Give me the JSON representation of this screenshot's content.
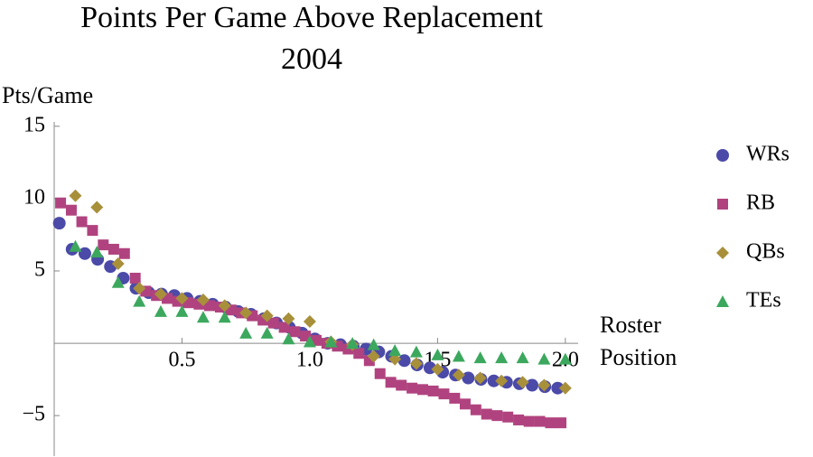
{
  "chart_data": {
    "type": "scatter",
    "title": "Points Per Game Above Replacement",
    "subtitle": "2004",
    "ylabel": "Pts/Game",
    "xlabel": "Roster Position",
    "xlim": [
      0,
      2.05
    ],
    "ylim": [
      -7.8,
      15.3
    ],
    "xticks": [
      0.5,
      {
        "value": 1.0,
        "label": "1.0"
      },
      1.5,
      {
        "value": 2.0,
        "label": "2.0"
      }
    ],
    "yticks": [
      {
        "value": -5,
        "label": "−5"
      },
      5,
      10,
      15
    ],
    "legend": "right",
    "series": [
      {
        "name": "WRs",
        "color": "#4b4aa8",
        "marker": "circle",
        "x": [
          0.02,
          0.07,
          0.12,
          0.17,
          0.22,
          0.27,
          0.32,
          0.37,
          0.42,
          0.47,
          0.52,
          0.57,
          0.62,
          0.67,
          0.72,
          0.77,
          0.82,
          0.87,
          0.92,
          0.97,
          1.02,
          1.07,
          1.12,
          1.17,
          1.22,
          1.27,
          1.32,
          1.37,
          1.42,
          1.47,
          1.52,
          1.57,
          1.62,
          1.67,
          1.72,
          1.77,
          1.82,
          1.87,
          1.92,
          1.97
        ],
        "values": [
          8.3,
          6.5,
          6.2,
          5.8,
          5.3,
          4.5,
          3.8,
          3.5,
          3.4,
          3.3,
          3.1,
          2.9,
          2.7,
          2.5,
          2.2,
          2.0,
          1.7,
          1.4,
          1.1,
          0.7,
          0.3,
          0.0,
          -0.1,
          -0.2,
          -0.4,
          -0.6,
          -0.9,
          -1.2,
          -1.5,
          -1.7,
          -2.0,
          -2.2,
          -2.4,
          -2.5,
          -2.6,
          -2.7,
          -2.8,
          -2.9,
          -3.0,
          -3.1
        ]
      },
      {
        "name": "RB",
        "color": "#b0437f",
        "marker": "square",
        "x": [
          0.025,
          0.067,
          0.108,
          0.15,
          0.192,
          0.233,
          0.275,
          0.317,
          0.358,
          0.4,
          0.442,
          0.483,
          0.525,
          0.567,
          0.608,
          0.65,
          0.692,
          0.733,
          0.775,
          0.817,
          0.858,
          0.9,
          0.942,
          0.983,
          1.025,
          1.067,
          1.108,
          1.15,
          1.192,
          1.233,
          1.275,
          1.317,
          1.358,
          1.4,
          1.442,
          1.483,
          1.525,
          1.567,
          1.608,
          1.65,
          1.692,
          1.733,
          1.775,
          1.817,
          1.858,
          1.9,
          1.942,
          1.983
        ],
        "values": [
          9.7,
          9.2,
          8.4,
          7.8,
          6.8,
          6.5,
          6.2,
          4.5,
          3.6,
          3.3,
          3.1,
          2.9,
          2.8,
          2.7,
          2.6,
          2.5,
          2.3,
          2.1,
          1.9,
          1.6,
          1.4,
          1.1,
          0.8,
          0.5,
          0.2,
          0.0,
          -0.2,
          -0.4,
          -0.7,
          -1.2,
          -2.1,
          -2.7,
          -2.9,
          -3.1,
          -3.2,
          -3.3,
          -3.5,
          -3.8,
          -4.2,
          -4.6,
          -4.9,
          -5.0,
          -5.1,
          -5.3,
          -5.4,
          -5.4,
          -5.5,
          -5.5
        ]
      },
      {
        "name": "QBs",
        "color": "#a8903b",
        "marker": "diamond",
        "x": [
          0.083,
          0.167,
          0.25,
          0.333,
          0.417,
          0.5,
          0.583,
          0.667,
          0.75,
          0.833,
          0.917,
          1.0,
          1.083,
          1.167,
          1.25,
          1.333,
          1.417,
          1.5,
          1.583,
          1.667,
          1.75,
          1.833,
          1.917,
          2.0
        ],
        "values": [
          10.2,
          9.4,
          5.5,
          3.8,
          3.4,
          3.1,
          3.0,
          2.6,
          2.1,
          1.9,
          1.7,
          1.5,
          0.1,
          -0.1,
          -0.9,
          -1.1,
          -1.4,
          -1.8,
          -2.2,
          -2.4,
          -2.6,
          -2.7,
          -2.9,
          -3.1
        ]
      },
      {
        "name": "TEs",
        "color": "#3ca85e",
        "marker": "triangle",
        "x": [
          0.083,
          0.167,
          0.25,
          0.333,
          0.417,
          0.5,
          0.583,
          0.667,
          0.75,
          0.833,
          0.917,
          1.0,
          1.083,
          1.167,
          1.25,
          1.333,
          1.417,
          1.5,
          1.583,
          1.667,
          1.75,
          1.833,
          1.917,
          2.0
        ],
        "values": [
          6.7,
          6.3,
          4.2,
          2.9,
          2.2,
          2.2,
          1.8,
          1.8,
          0.7,
          0.7,
          0.3,
          0.1,
          0.1,
          0.0,
          -0.1,
          -0.5,
          -0.6,
          -0.8,
          -0.9,
          -1.0,
          -1.0,
          -1.0,
          -1.1,
          -1.1
        ]
      }
    ]
  }
}
